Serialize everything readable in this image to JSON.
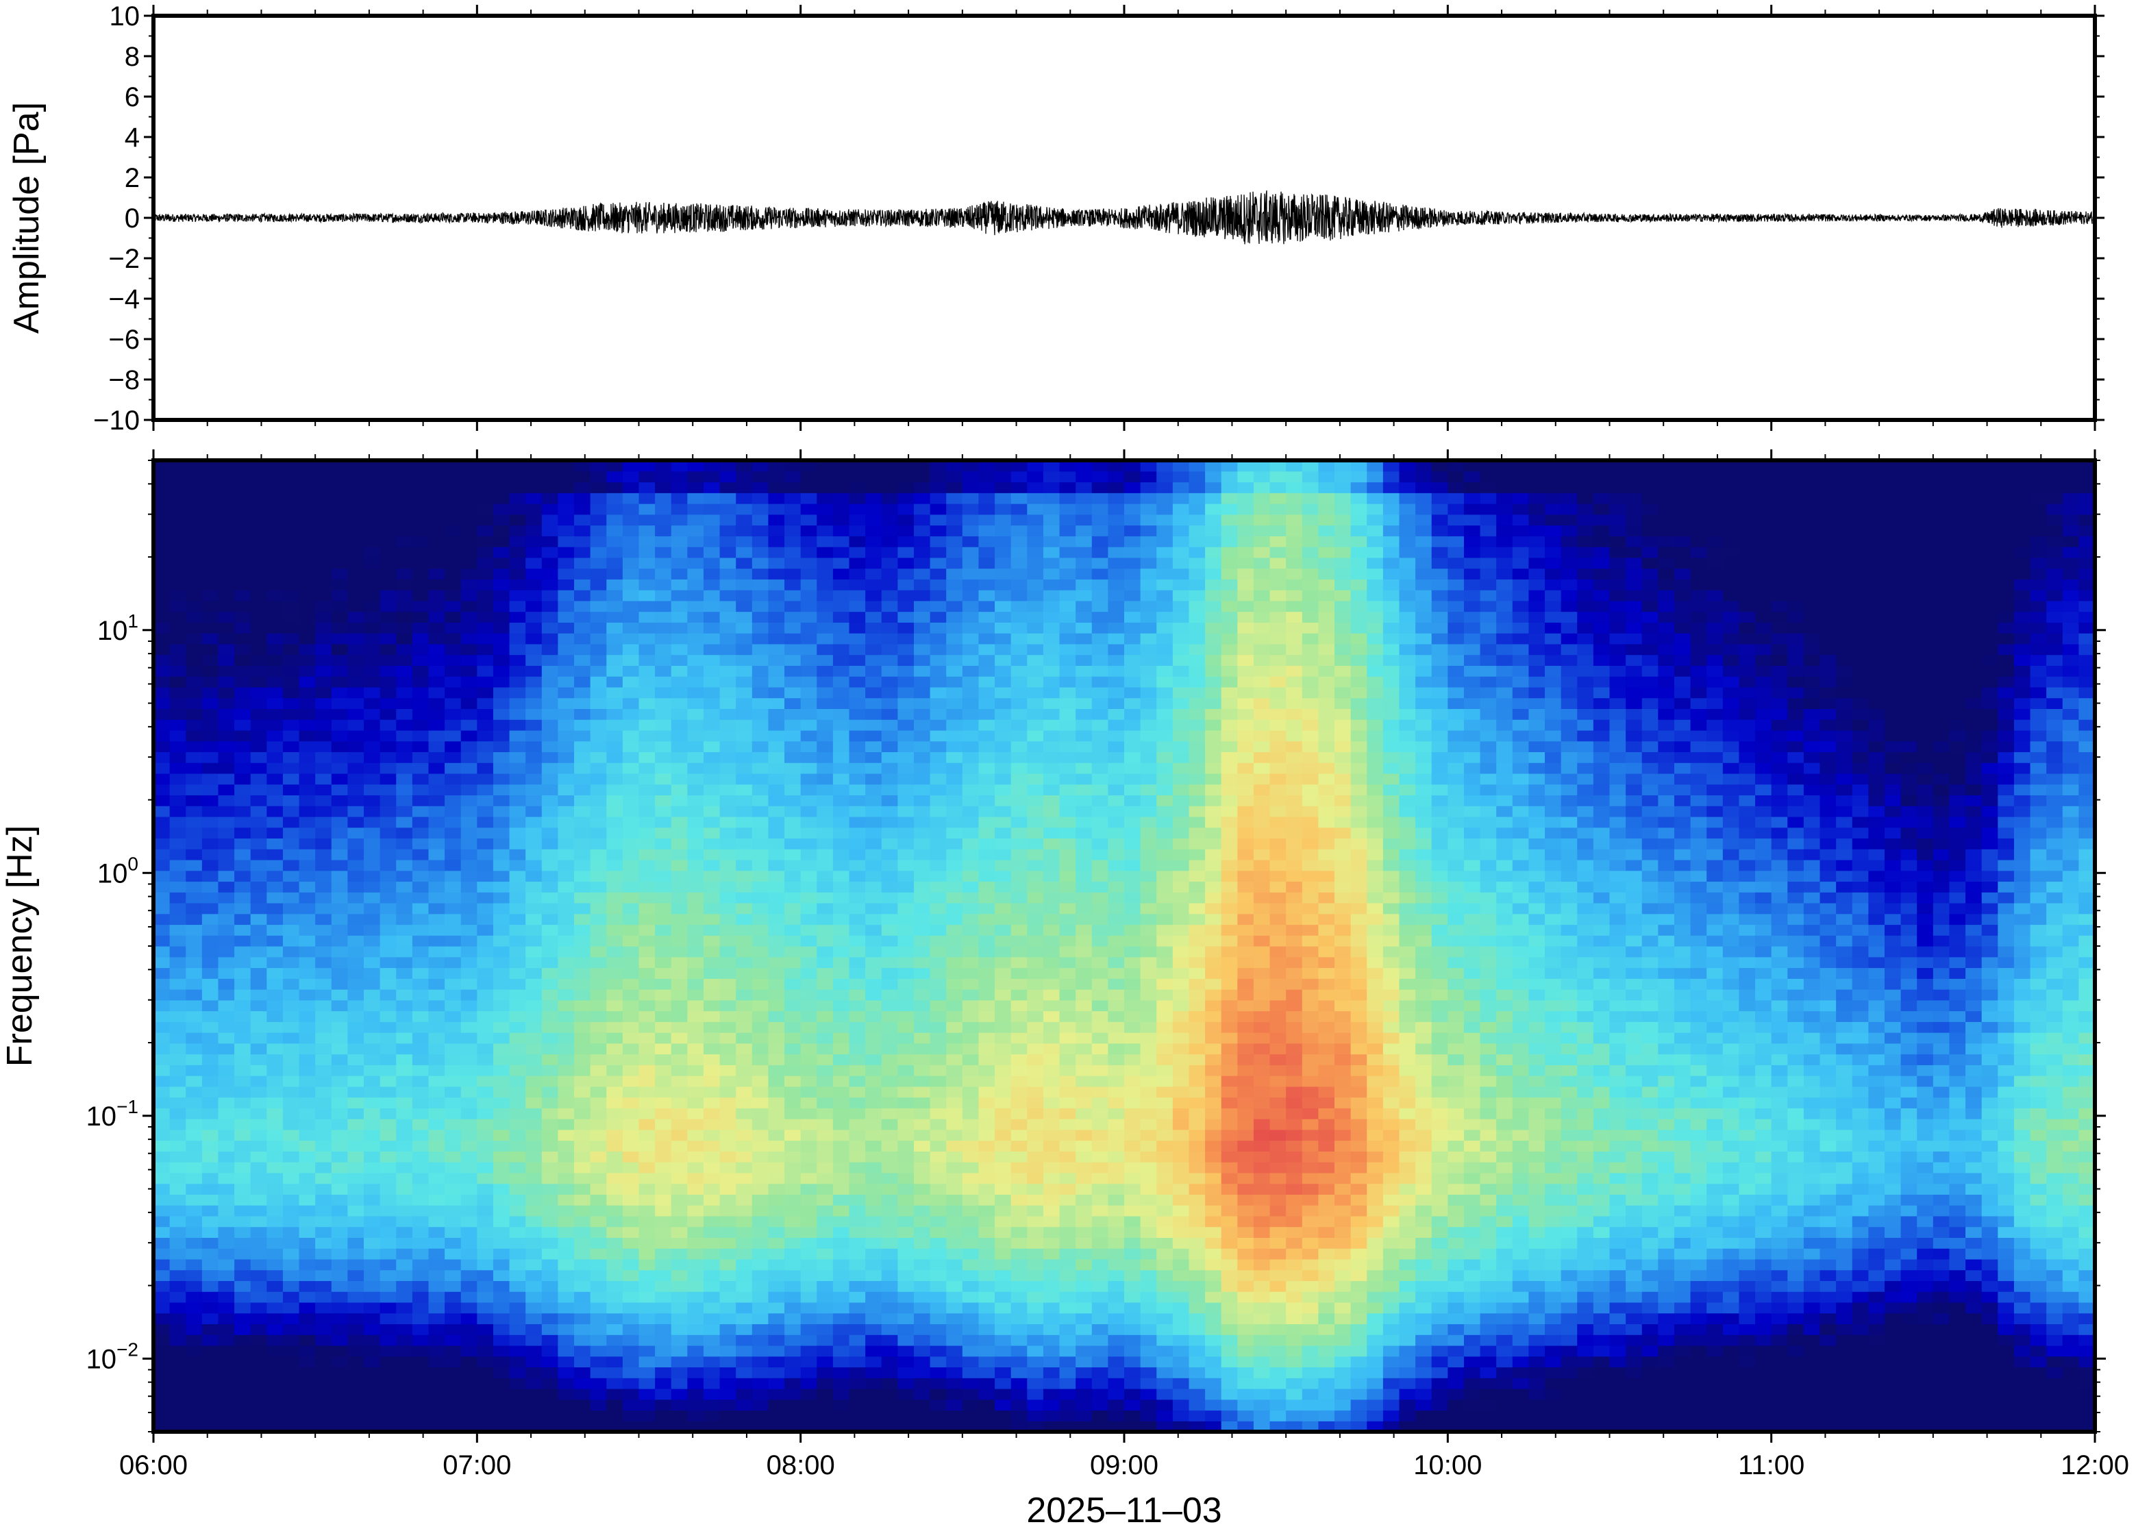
{
  "chart_data": [
    {
      "type": "line",
      "panel": "waveform",
      "ylabel": "Amplitude [Pa]",
      "ylim": [
        -10,
        10
      ],
      "yticks": [
        -10,
        -8,
        -6,
        -4,
        -2,
        0,
        2,
        4,
        6,
        8,
        10
      ],
      "ytick_labels": [
        "−10",
        "−8",
        "−6",
        "−4",
        "−2",
        "0",
        "2",
        "4",
        "6",
        "8",
        "10"
      ],
      "series_color": "#000000",
      "envelope": {
        "time_hours": [
          6.0,
          6.5,
          7.0,
          7.2,
          7.35,
          7.5,
          7.75,
          8.0,
          8.25,
          8.5,
          8.6,
          8.7,
          8.85,
          9.0,
          9.15,
          9.3,
          9.4,
          9.5,
          9.6,
          9.7,
          9.85,
          10.0,
          10.2,
          10.5,
          11.0,
          11.5,
          11.65,
          11.7,
          11.85,
          12.0
        ],
        "amplitude_pa": [
          0.2,
          0.2,
          0.25,
          0.4,
          0.7,
          0.8,
          0.7,
          0.5,
          0.4,
          0.5,
          0.9,
          0.7,
          0.4,
          0.5,
          0.8,
          1.1,
          1.4,
          1.3,
          1.2,
          1.0,
          0.7,
          0.4,
          0.3,
          0.2,
          0.2,
          0.15,
          0.2,
          0.5,
          0.4,
          0.3
        ]
      }
    },
    {
      "type": "heatmap",
      "panel": "spectrogram",
      "ylabel": "Frequency [Hz]",
      "yscale": "log",
      "ylim": [
        0.005,
        50
      ],
      "yticks": [
        0.01,
        0.1,
        1,
        10
      ],
      "ytick_labels": [
        {
          "base": "10",
          "exp": "−2"
        },
        {
          "base": "10",
          "exp": "−1"
        },
        {
          "base": "10",
          "exp": "0"
        },
        {
          "base": "10",
          "exp": "1"
        }
      ],
      "colormap": "jet",
      "colormap_stops": [
        "#0a0a6e",
        "#0000c8",
        "#1e6ee6",
        "#3cbef5",
        "#5ae6e6",
        "#96e6a0",
        "#e6f08c",
        "#fac864",
        "#f58c50",
        "#e6504b"
      ],
      "xlabel": "2025–11–03",
      "xlim_hours": [
        6,
        12
      ],
      "xticks_hours": [
        6,
        7,
        8,
        9,
        10,
        11,
        12
      ],
      "xtick_labels": [
        "06:00",
        "07:00",
        "08:00",
        "09:00",
        "10:00",
        "11:00",
        "12:00"
      ],
      "activity_profile": {
        "time_hours": [
          6.0,
          6.5,
          7.0,
          7.25,
          7.5,
          7.75,
          8.0,
          8.25,
          8.5,
          8.75,
          9.0,
          9.25,
          9.35,
          9.5,
          9.7,
          9.85,
          10.0,
          10.5,
          11.0,
          11.3,
          11.5,
          11.65,
          11.8,
          12.0
        ],
        "relative_power": [
          0.42,
          0.45,
          0.48,
          0.6,
          0.7,
          0.68,
          0.62,
          0.58,
          0.66,
          0.72,
          0.68,
          0.82,
          0.95,
          0.97,
          0.9,
          0.74,
          0.64,
          0.52,
          0.44,
          0.38,
          0.32,
          0.36,
          0.5,
          0.55
        ]
      }
    }
  ]
}
